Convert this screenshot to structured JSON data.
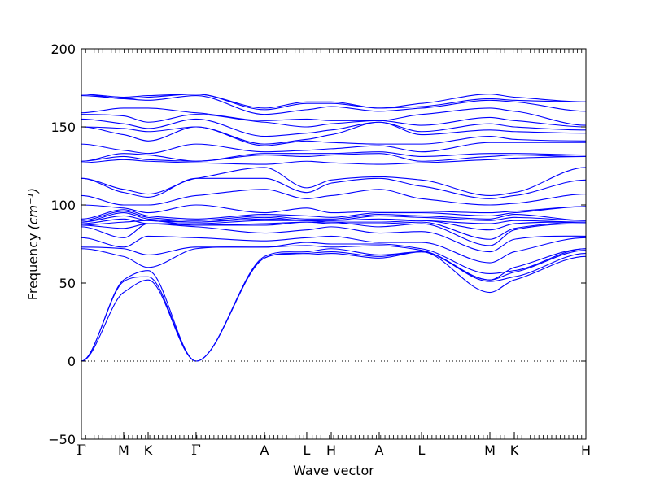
{
  "chart_data": {
    "type": "line",
    "xlabel": "Wave vector",
    "ylabel": "Frequency",
    "ylabel_unit": "(cm⁻¹)",
    "ylim": [
      -50,
      200
    ],
    "yticks": [
      -50,
      0,
      50,
      100,
      150,
      200
    ],
    "zero_line": true,
    "grid": false,
    "line_color": "#0000ff",
    "x_range": [
      0,
      1
    ],
    "special_points": [
      {
        "label": "Γ",
        "x": 0.0
      },
      {
        "label": "M",
        "x": 0.0838
      },
      {
        "label": "K",
        "x": 0.1323
      },
      {
        "label": "Γ",
        "x": 0.2273
      },
      {
        "label": "A",
        "x": 0.3629
      },
      {
        "label": "L",
        "x": 0.4467
      },
      {
        "label": "H",
        "x": 0.4952
      },
      {
        "label": "A",
        "x": 0.5903
      },
      {
        "label": "L",
        "x": 0.6742
      },
      {
        "label": "M",
        "x": 0.8097
      },
      {
        "label": "K",
        "x": 0.8581
      },
      {
        "label": "H",
        "x": 1.0
      }
    ],
    "series": [
      {
        "values": [
          0,
          44,
          52,
          0,
          66,
          68,
          69,
          66,
          70,
          44,
          52,
          67
        ]
      },
      {
        "values": [
          0,
          51,
          54,
          0,
          66,
          69,
          70,
          67,
          70,
          51,
          54,
          69
        ]
      },
      {
        "values": [
          0,
          52,
          58,
          0,
          67,
          70,
          72,
          68,
          70,
          52,
          57,
          71
        ]
      },
      {
        "values": [
          72,
          67,
          60,
          72,
          73,
          74,
          73,
          74,
          71,
          52,
          60,
          72
        ]
      },
      {
        "values": [
          73,
          72,
          68,
          73,
          73,
          76,
          75,
          75,
          72,
          56,
          58,
          72
        ]
      },
      {
        "values": [
          79,
          73,
          80,
          79,
          77,
          79,
          80,
          76,
          76,
          63,
          70,
          79
        ]
      },
      {
        "values": [
          86,
          79,
          88,
          86,
          82,
          84,
          86,
          82,
          83,
          70,
          78,
          80
        ]
      },
      {
        "values": [
          87,
          85,
          88,
          87,
          87,
          89,
          89,
          86,
          88,
          74,
          84,
          88
        ]
      },
      {
        "values": [
          87,
          89,
          90,
          87,
          88,
          89,
          88,
          88,
          89,
          78,
          85,
          89
        ]
      },
      {
        "values": [
          88,
          91,
          88,
          88,
          90,
          90,
          89,
          89,
          90,
          84,
          88,
          89
        ]
      },
      {
        "values": [
          89,
          93,
          90,
          89,
          91,
          90,
          90,
          91,
          90,
          88,
          90,
          89
        ]
      },
      {
        "values": [
          89,
          95,
          91,
          89,
          92,
          90,
          90,
          93,
          92,
          90,
          92,
          90
        ]
      },
      {
        "values": [
          90,
          96,
          92,
          90,
          93,
          91,
          91,
          94,
          93,
          91,
          94,
          90
        ]
      },
      {
        "values": [
          91,
          97,
          93,
          91,
          94,
          93,
          92,
          95,
          95,
          93,
          95,
          99
        ]
      },
      {
        "values": [
          100,
          98,
          95,
          100,
          95,
          98,
          95,
          96,
          96,
          95,
          96,
          99
        ]
      },
      {
        "values": [
          106,
          100,
          100,
          106,
          110,
          104,
          106,
          110,
          104,
          100,
          101,
          107
        ]
      },
      {
        "values": [
          117,
          108,
          105,
          117,
          117,
          108,
          114,
          117,
          112,
          104,
          106,
          116
        ]
      },
      {
        "values": [
          117,
          110,
          107,
          117,
          124,
          111,
          116,
          118,
          116,
          106,
          108,
          124
        ]
      },
      {
        "values": [
          127,
          129,
          128,
          127,
          126,
          128,
          127,
          126,
          127,
          129,
          130,
          131
        ]
      },
      {
        "values": [
          128,
          131,
          129,
          128,
          132,
          131,
          132,
          133,
          128,
          131,
          132,
          131
        ]
      },
      {
        "values": [
          128,
          133,
          132,
          128,
          133,
          133,
          133,
          134,
          131,
          133,
          133,
          132
        ]
      },
      {
        "values": [
          139,
          135,
          133,
          139,
          134,
          135,
          136,
          138,
          134,
          140,
          140,
          140
        ]
      },
      {
        "values": [
          150,
          145,
          141,
          150,
          138,
          141,
          140,
          139,
          139,
          144,
          142,
          141
        ]
      },
      {
        "values": [
          150,
          149,
          147,
          150,
          139,
          142,
          145,
          153,
          145,
          148,
          147,
          146
        ]
      },
      {
        "values": [
          155,
          152,
          149,
          155,
          144,
          146,
          148,
          153,
          147,
          152,
          150,
          148
        ]
      },
      {
        "values": [
          158,
          157,
          153,
          158,
          153,
          150,
          152,
          154,
          151,
          156,
          154,
          150
        ]
      },
      {
        "values": [
          159,
          162,
          162,
          159,
          154,
          155,
          154,
          154,
          158,
          162,
          160,
          151
        ]
      },
      {
        "values": [
          170,
          168,
          167,
          170,
          158,
          161,
          163,
          160,
          162,
          167,
          166,
          160
        ]
      },
      {
        "values": [
          171,
          168,
          169,
          171,
          161,
          165,
          165,
          162,
          163,
          168,
          167,
          166
        ]
      },
      {
        "values": [
          171,
          169,
          170,
          171,
          162,
          166,
          166,
          162,
          165,
          171,
          169,
          166
        ]
      }
    ]
  }
}
